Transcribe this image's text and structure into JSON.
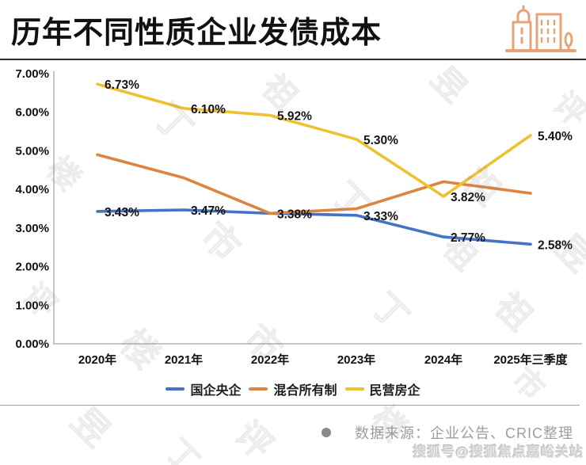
{
  "header": {
    "title": "历年不同性质企业发债成本",
    "logo_icon": "buildings-icon",
    "logo_color": "#E5A477"
  },
  "chart_data": {
    "type": "line",
    "title": "历年不同性质企业发债成本",
    "categories": [
      "2020年",
      "2021年",
      "2022年",
      "2023年",
      "2024年",
      "2025年三季度"
    ],
    "series": [
      {
        "name": "国企央企",
        "color": "#4472C4",
        "values": [
          3.43,
          3.47,
          3.38,
          3.33,
          2.77,
          2.58
        ],
        "labels": [
          "3.43%",
          "3.47%",
          "3.38%",
          "3.33%",
          "2.77%",
          "2.58%"
        ]
      },
      {
        "name": "混合所有制",
        "color": "#DF8440",
        "values": [
          4.9,
          4.3,
          3.38,
          3.5,
          4.2,
          3.9
        ],
        "labels": null
      },
      {
        "name": "民营房企",
        "color": "#EDC130",
        "values": [
          6.73,
          6.1,
          5.92,
          5.3,
          3.82,
          5.4
        ],
        "labels": [
          "6.73%",
          "6.10%",
          "5.92%",
          "5.30%",
          "3.82%",
          "5.40%"
        ]
      }
    ],
    "ylim": [
      0,
      7
    ],
    "y_ticks": [
      "0.00%",
      "1.00%",
      "2.00%",
      "3.00%",
      "4.00%",
      "5.00%",
      "6.00%",
      "7.00%"
    ],
    "grid": false,
    "legend_position": "bottom"
  },
  "footer": {
    "source_bullet": "●",
    "source_text": "数据来源：企业公告、CRIC整理"
  },
  "watermarks": {
    "sohu": "搜狐号@搜狐焦点嘉峪关站",
    "diagonal_text": "丁祖昱评楼市"
  }
}
